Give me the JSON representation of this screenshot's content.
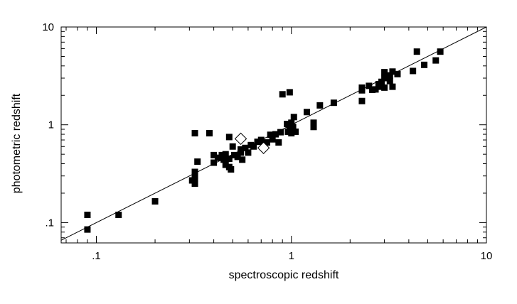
{
  "chart_data": {
    "type": "scatter",
    "title": "",
    "xlabel": "spectroscopic redshift",
    "ylabel": "photometric redshift",
    "x_scale": "log",
    "y_scale": "log",
    "xlim": [
      0.066,
      10
    ],
    "ylim": [
      0.062,
      10
    ],
    "grid": false,
    "legend": "none",
    "x_ticks": [
      {
        "value": 0.1,
        "label": ".1"
      },
      {
        "value": 1,
        "label": "1"
      },
      {
        "value": 10,
        "label": "10"
      }
    ],
    "y_ticks": [
      {
        "value": 0.1,
        "label": ".1"
      },
      {
        "value": 1,
        "label": "1"
      },
      {
        "value": 10,
        "label": "10"
      }
    ],
    "reference_line": {
      "type": "identity",
      "description": "y = x"
    },
    "series": [
      {
        "marker": "filled-square",
        "points": [
          [
            0.09,
            0.12
          ],
          [
            0.09,
            0.085
          ],
          [
            0.13,
            0.12
          ],
          [
            0.2,
            0.165
          ],
          [
            0.31,
            0.27
          ],
          [
            0.32,
            0.82
          ],
          [
            0.32,
            0.33
          ],
          [
            0.32,
            0.3
          ],
          [
            0.32,
            0.28
          ],
          [
            0.32,
            0.25
          ],
          [
            0.33,
            0.42
          ],
          [
            0.38,
            0.82
          ],
          [
            0.4,
            0.49
          ],
          [
            0.4,
            0.41
          ],
          [
            0.42,
            0.46
          ],
          [
            0.44,
            0.49
          ],
          [
            0.45,
            0.44
          ],
          [
            0.46,
            0.39
          ],
          [
            0.46,
            0.5
          ],
          [
            0.48,
            0.75
          ],
          [
            0.48,
            0.37
          ],
          [
            0.48,
            0.45
          ],
          [
            0.49,
            0.35
          ],
          [
            0.5,
            0.6
          ],
          [
            0.51,
            0.49
          ],
          [
            0.53,
            0.47
          ],
          [
            0.55,
            0.56
          ],
          [
            0.55,
            0.52
          ],
          [
            0.56,
            0.44
          ],
          [
            0.58,
            0.58
          ],
          [
            0.6,
            0.52
          ],
          [
            0.62,
            0.62
          ],
          [
            0.64,
            0.6
          ],
          [
            0.67,
            0.67
          ],
          [
            0.7,
            0.7
          ],
          [
            0.72,
            0.64
          ],
          [
            0.75,
            0.66
          ],
          [
            0.78,
            0.79
          ],
          [
            0.8,
            0.71
          ],
          [
            0.83,
            0.8
          ],
          [
            0.86,
            0.66
          ],
          [
            0.88,
            0.84
          ],
          [
            0.9,
            2.05
          ],
          [
            0.95,
            1.02
          ],
          [
            0.96,
            0.85
          ],
          [
            0.98,
            0.93
          ],
          [
            0.98,
            2.15
          ],
          [
            1.0,
            1.05
          ],
          [
            1.0,
            0.9
          ],
          [
            1.0,
            0.82
          ],
          [
            1.02,
            0.95
          ],
          [
            1.03,
            1.2
          ],
          [
            1.05,
            0.85
          ],
          [
            1.2,
            1.35
          ],
          [
            1.3,
            1.05
          ],
          [
            1.3,
            0.95
          ],
          [
            1.4,
            1.58
          ],
          [
            1.65,
            1.68
          ],
          [
            2.3,
            2.4
          ],
          [
            2.3,
            2.25
          ],
          [
            2.3,
            1.75
          ],
          [
            2.5,
            2.5
          ],
          [
            2.6,
            2.28
          ],
          [
            2.7,
            2.3
          ],
          [
            2.8,
            2.6
          ],
          [
            2.9,
            2.75
          ],
          [
            2.9,
            2.45
          ],
          [
            3.0,
            3.0
          ],
          [
            3.0,
            2.4
          ],
          [
            3.0,
            3.45
          ],
          [
            3.2,
            3.2
          ],
          [
            3.2,
            2.8
          ],
          [
            3.3,
            3.5
          ],
          [
            3.3,
            2.45
          ],
          [
            3.5,
            3.3
          ],
          [
            4.2,
            3.55
          ],
          [
            4.4,
            5.6
          ],
          [
            4.8,
            4.1
          ],
          [
            5.5,
            4.55
          ],
          [
            5.8,
            5.6
          ]
        ]
      },
      {
        "marker": "open-diamond",
        "points": [
          [
            0.55,
            0.72
          ],
          [
            0.72,
            0.58
          ]
        ]
      }
    ]
  }
}
